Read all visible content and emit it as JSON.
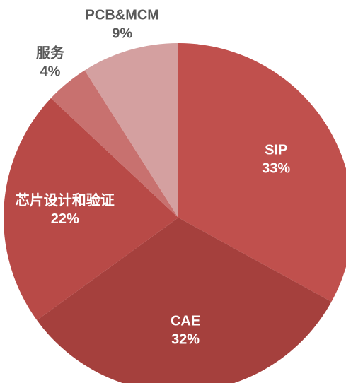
{
  "chart_data": {
    "type": "pie",
    "categories": [
      "SIP",
      "CAE",
      "芯片设计和验证",
      "服务",
      "PCB&MCM"
    ],
    "values": [
      33,
      32,
      22,
      4,
      9
    ],
    "value_labels": [
      "33%",
      "32%",
      "22%",
      "4%",
      "9%"
    ],
    "colors": [
      "#c0504d",
      "#a5403d",
      "#b84a47",
      "#c8716f",
      "#d4a0a0"
    ]
  }
}
